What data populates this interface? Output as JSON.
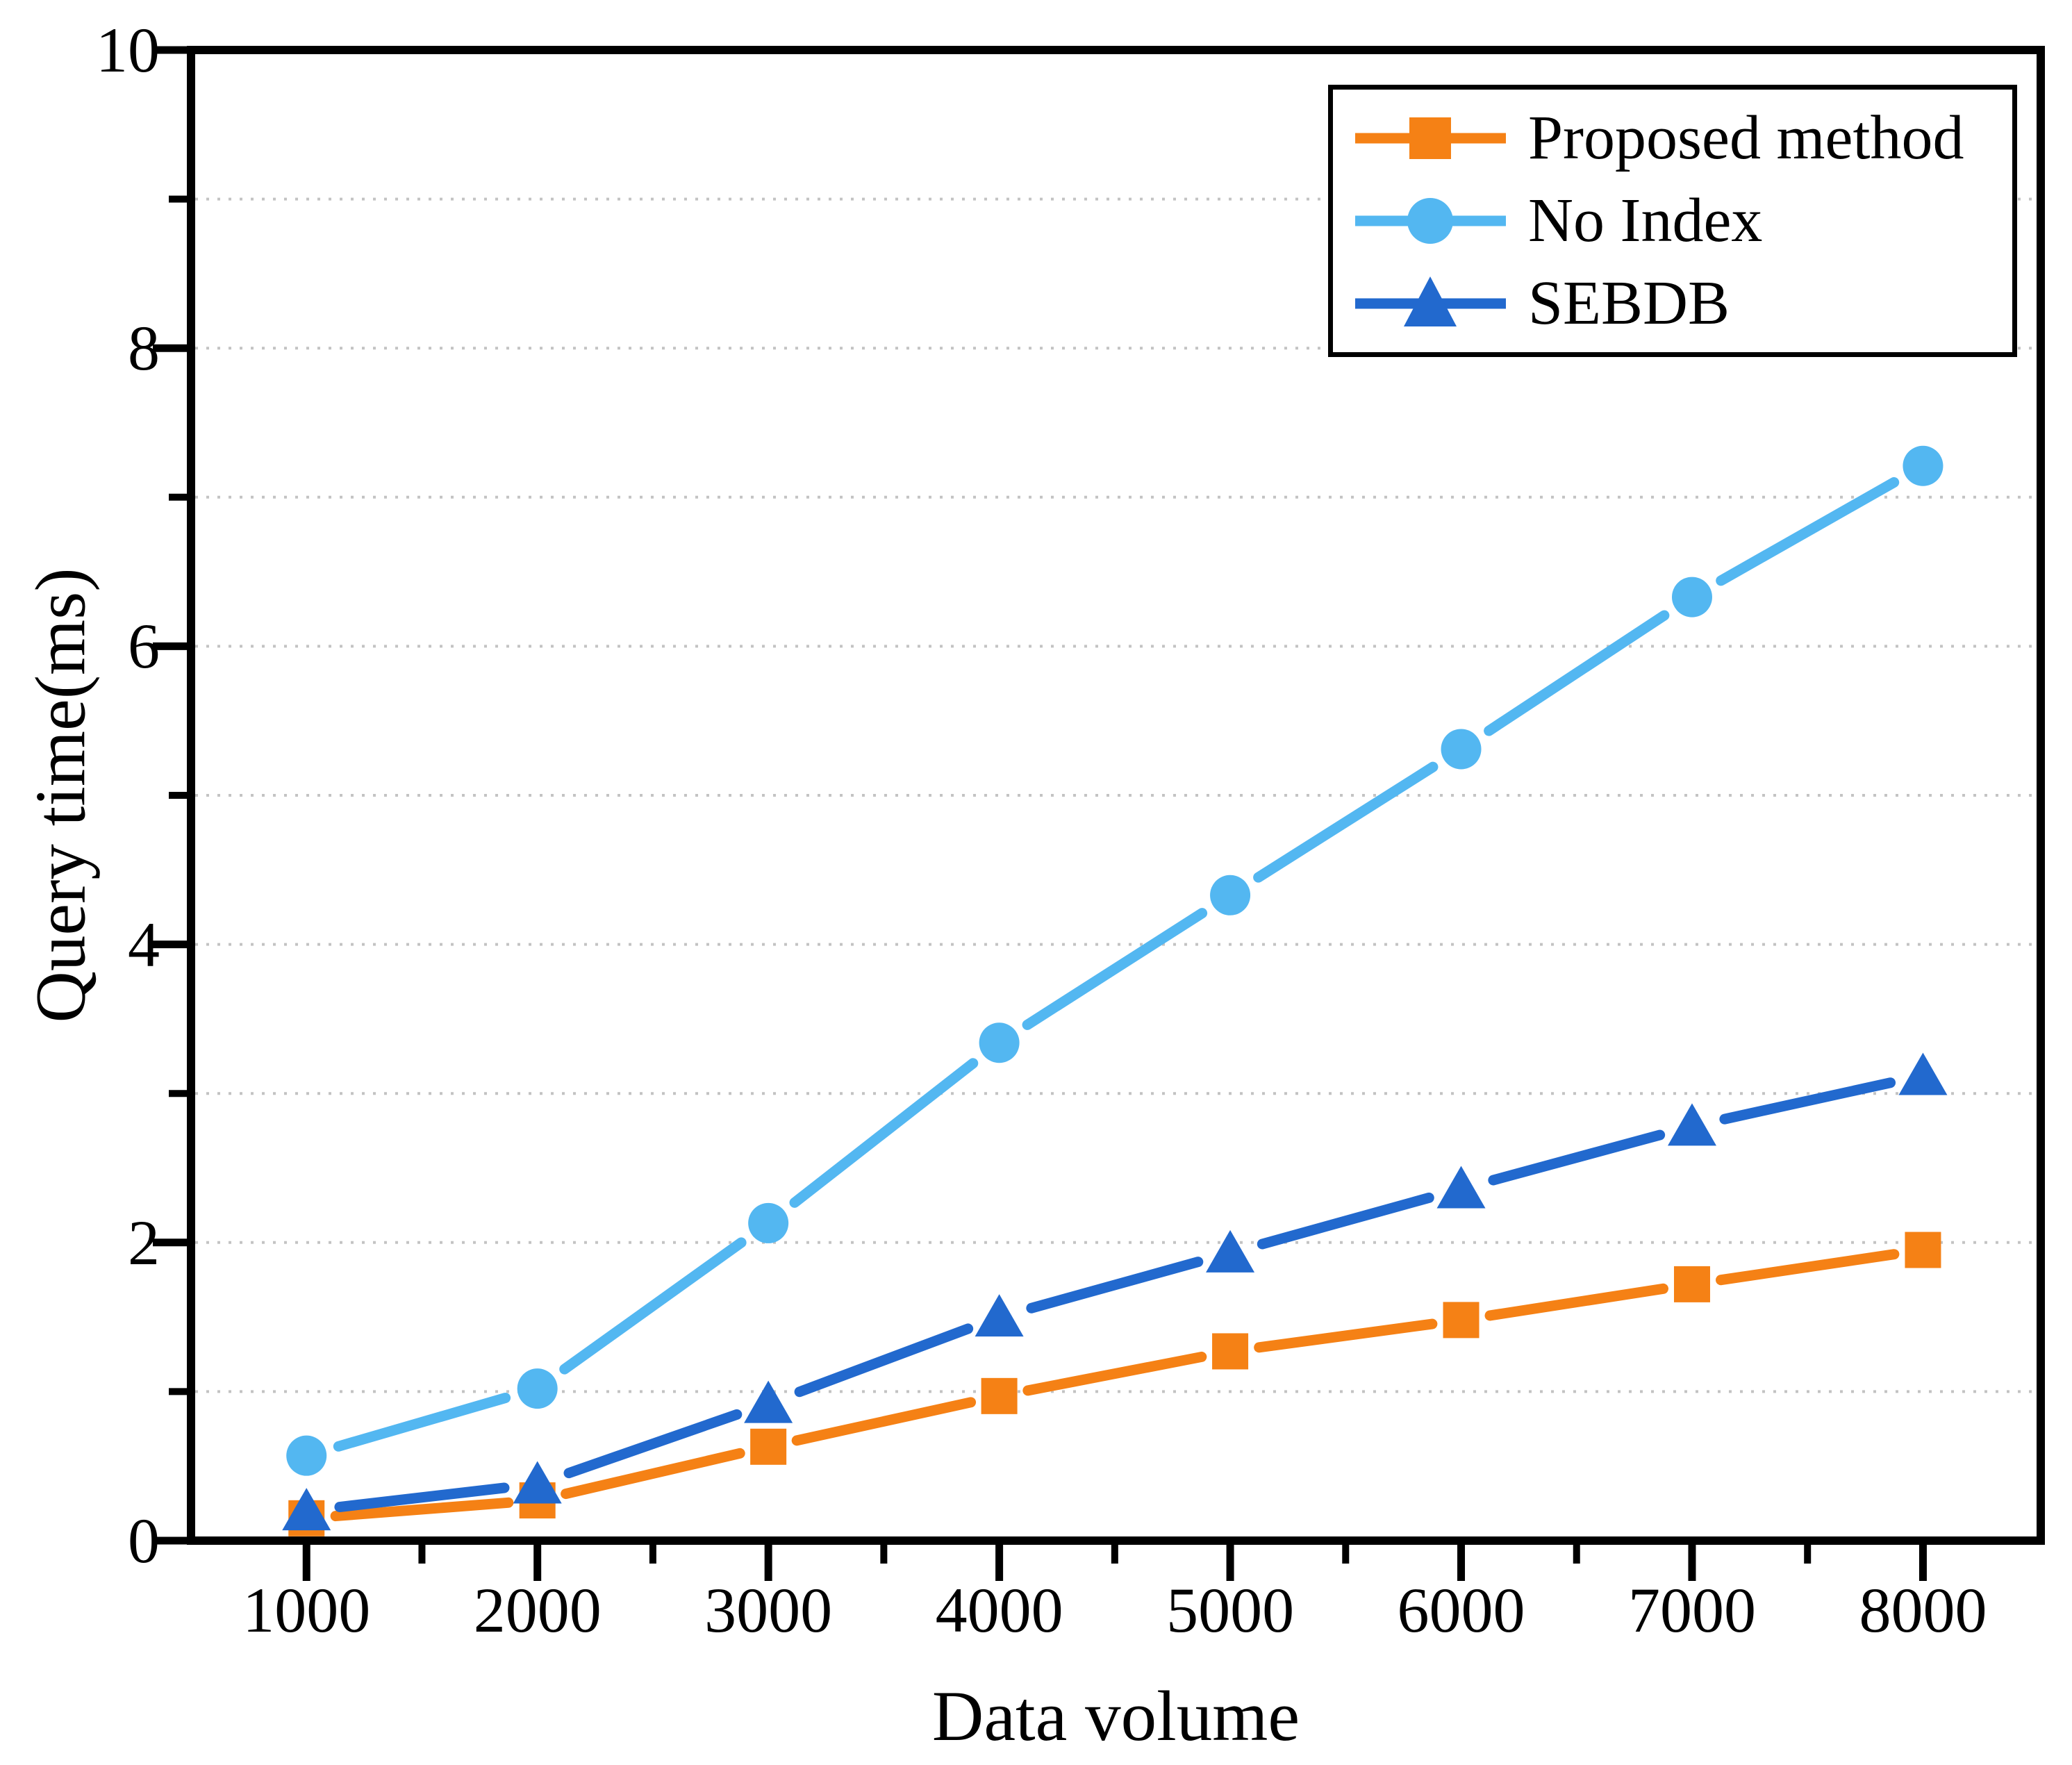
{
  "chart_data": {
    "type": "line",
    "x": [
      1000,
      2000,
      3000,
      4000,
      5000,
      6000,
      7000,
      8000
    ],
    "series": [
      {
        "name": "Proposed method",
        "marker": "square",
        "color": "#F58115",
        "values": [
          0.15,
          0.27,
          0.63,
          0.97,
          1.27,
          1.48,
          1.72,
          1.95
        ]
      },
      {
        "name": "No Index",
        "marker": "circle",
        "color": "#53B7F1",
        "values": [
          0.57,
          1.02,
          2.13,
          3.34,
          4.33,
          5.31,
          6.33,
          7.21
        ]
      },
      {
        "name": "SEBDB",
        "marker": "triangle",
        "color": "#2269CE",
        "values": [
          0.2,
          0.38,
          0.92,
          1.5,
          1.93,
          2.36,
          2.78,
          3.12
        ]
      }
    ],
    "title": "",
    "xlabel": "Data volume",
    "ylabel": "Query time(ms)",
    "ylim": [
      0,
      10
    ],
    "xlim": [
      500,
      8510
    ],
    "x_major_ticks": [
      1000,
      2000,
      3000,
      4000,
      5000,
      6000,
      7000,
      8000
    ],
    "x_minor_ticks": [
      1500,
      2500,
      3500,
      4500,
      5500,
      6500,
      7500
    ],
    "y_major_ticks": [
      0,
      2,
      4,
      6,
      8,
      10
    ],
    "y_minor_ticks": [
      1,
      3,
      5,
      7,
      9
    ],
    "grid": "horizontal dotted lines at every integer 1-9",
    "legend_position": "top-right"
  },
  "axes": {
    "x_tick_labels": [
      "1000",
      "2000",
      "3000",
      "4000",
      "5000",
      "6000",
      "7000",
      "8000"
    ],
    "y_tick_labels": [
      "0",
      "2",
      "4",
      "6",
      "8",
      "10"
    ]
  },
  "legend": {
    "items": [
      {
        "label": "Proposed method",
        "marker": "square",
        "color": "#F58115"
      },
      {
        "label": "No Index",
        "marker": "circle",
        "color": "#53B7F1"
      },
      {
        "label": "SEBDB",
        "marker": "triangle",
        "color": "#2269CE"
      }
    ]
  },
  "colors": {
    "background": "#ffffff",
    "axis": "#000000",
    "gridline": "#c3c3c3",
    "orange": "#F58115",
    "light_blue": "#53B7F1",
    "blue": "#2269CE"
  }
}
